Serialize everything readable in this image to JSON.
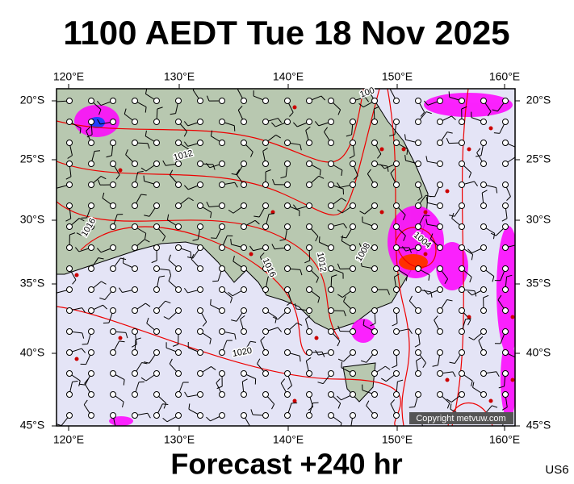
{
  "header": {
    "title": "1100 AEDT Tue 18 Nov 2025"
  },
  "axes": {
    "lon_labels": [
      "120°E",
      "130°E",
      "140°E",
      "150°E",
      "160°E"
    ],
    "lat_labels": [
      "20°S",
      "25°S",
      "30°S",
      "35°S",
      "40°S",
      "45°S"
    ]
  },
  "contour_labels": [
    "1012",
    "1016",
    "1016",
    "1012",
    "1008",
    "1004",
    "1020",
    "100"
  ],
  "copyright": "Copyright metvuw.com",
  "footer": {
    "forecast": "Forecast +240 hr",
    "code": "US6"
  }
}
